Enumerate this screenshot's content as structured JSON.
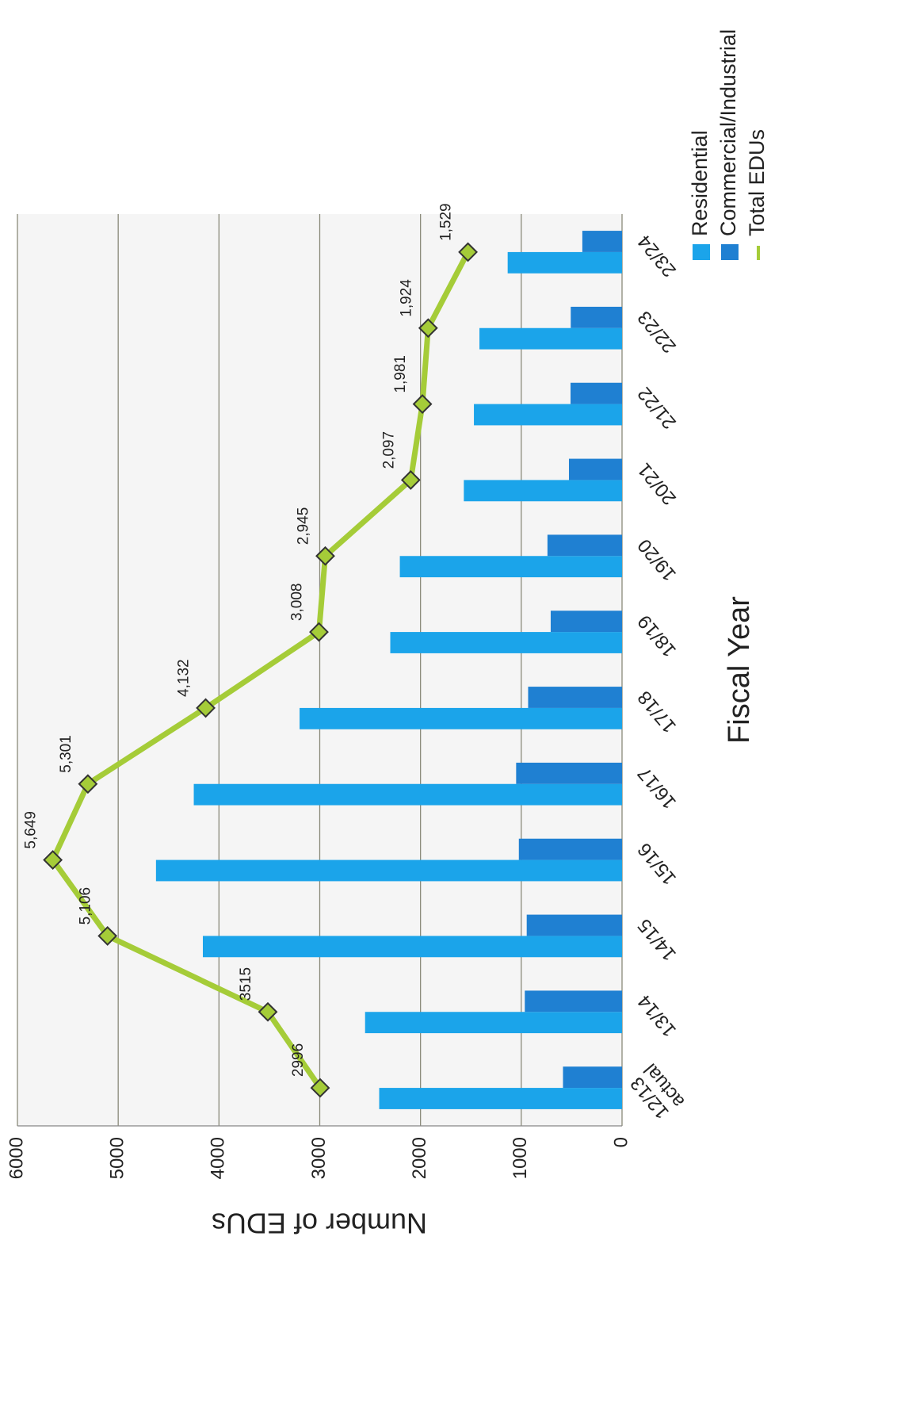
{
  "chart_data": {
    "type": "bar",
    "x_label": "Fiscal Year",
    "y_label": "Number of EDUs",
    "categories": [
      "12/13 actual",
      "13/14",
      "14/15",
      "15/16",
      "16/17",
      "17/18",
      "18/19",
      "19/20",
      "20/21",
      "21/22",
      "22/23",
      "23/24"
    ],
    "series": [
      {
        "name": "Residential",
        "type": "bar",
        "color": "#1ba4ea",
        "values": [
          2410,
          2550,
          4160,
          4625,
          4250,
          3200,
          2300,
          2205,
          1570,
          1470,
          1415,
          1135
        ]
      },
      {
        "name": "Commercial/Industrial",
        "type": "bar",
        "color": "#1f80d2",
        "values": [
          586,
          965,
          946,
          1024,
          1051,
          932,
          708,
          740,
          527,
          511,
          509,
          394
        ]
      },
      {
        "name": "Total EDUs",
        "type": "line",
        "color": "#a5cc38",
        "values": [
          2996,
          3515,
          5106,
          5649,
          5301,
          4132,
          3008,
          2945,
          2097,
          1981,
          1924,
          1529
        ],
        "value_labels": [
          "2996",
          "3515",
          "5,106",
          "5,649",
          "5,301",
          "4,132",
          "3,008",
          "2,945",
          "2,097",
          "1,981",
          "1,924",
          "1,529"
        ]
      }
    ],
    "ylim": [
      0,
      6000
    ],
    "yticks": [
      0,
      1000,
      2000,
      3000,
      4000,
      5000,
      6000
    ],
    "grid": true,
    "legend": "right"
  }
}
